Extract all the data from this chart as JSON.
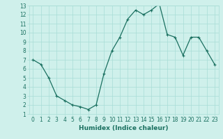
{
  "xlabel": "Humidex (Indice chaleur)",
  "x": [
    0,
    1,
    2,
    3,
    4,
    5,
    6,
    7,
    8,
    9,
    10,
    11,
    12,
    13,
    14,
    15,
    16,
    17,
    18,
    19,
    20,
    21,
    22,
    23
  ],
  "y": [
    7.0,
    6.5,
    5.0,
    3.0,
    2.5,
    2.0,
    1.8,
    1.5,
    2.0,
    5.5,
    8.0,
    9.5,
    11.5,
    12.5,
    12.0,
    12.5,
    13.2,
    9.8,
    9.5,
    7.5,
    9.5,
    9.5,
    8.0,
    6.5
  ],
  "line_color": "#1a7060",
  "marker": "+",
  "marker_color": "#1a7060",
  "bg_color": "#cff0eb",
  "grid_color": "#a8ddd6",
  "axis_label_color": "#1a7060",
  "tick_label_color": "#1a7060",
  "xlim": [
    -0.5,
    23.5
  ],
  "ylim": [
    1,
    13
  ],
  "yticks": [
    1,
    2,
    3,
    4,
    5,
    6,
    7,
    8,
    9,
    10,
    11,
    12,
    13
  ],
  "xticks": [
    0,
    1,
    2,
    3,
    4,
    5,
    6,
    7,
    8,
    9,
    10,
    11,
    12,
    13,
    14,
    15,
    16,
    17,
    18,
    19,
    20,
    21,
    22,
    23
  ],
  "xlabel_fontsize": 6.5,
  "tick_fontsize": 5.5,
  "linewidth": 0.9,
  "markersize": 3
}
